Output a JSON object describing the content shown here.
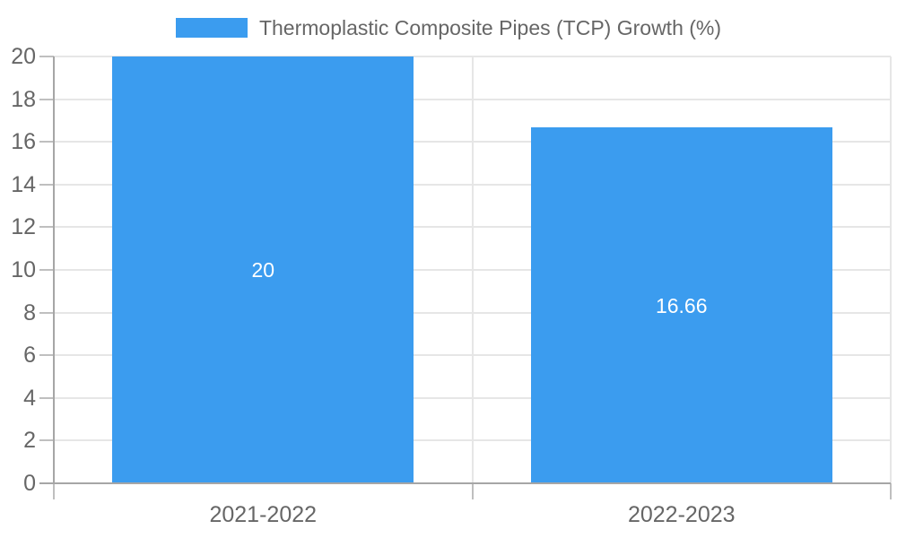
{
  "legend": {
    "label": "Thermoplastic Composite Pipes (TCP) Growth (%)"
  },
  "colors": {
    "bar": "#3B9CEF",
    "grid": "#E6E6E6",
    "axis": "#A6A6A6",
    "tick": "#BFBFBF",
    "text": "#666666",
    "bar_label": "#FFFFFF"
  },
  "chart_data": {
    "type": "bar",
    "title": "",
    "legend": "Thermoplastic Composite Pipes (TCP) Growth (%)",
    "legend_position": "top",
    "categories": [
      "2021-2022",
      "2022-2023"
    ],
    "values": [
      20,
      16.66
    ],
    "bar_labels": [
      "20",
      "16.66"
    ],
    "xlabel": "",
    "ylabel": "",
    "ylim": [
      0,
      20
    ],
    "ytick_step": 2,
    "yticks": [
      0,
      2,
      4,
      6,
      8,
      10,
      12,
      14,
      16,
      18,
      20
    ],
    "grid": true,
    "bar_label_position": "center"
  }
}
